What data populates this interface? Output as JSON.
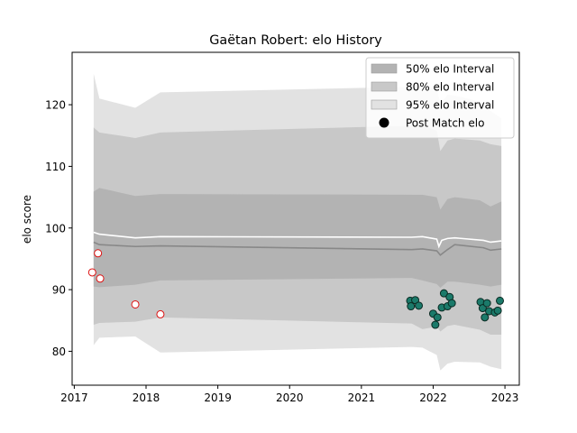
{
  "chart_data": {
    "type": "line",
    "title": "Gaëtan Robert: elo History",
    "xlabel": "",
    "ylabel": "elo score",
    "xlim": [
      2016.97,
      2023.2
    ],
    "ylim": [
      74.5,
      128.5
    ],
    "x_ticks": [
      "2017",
      "2018",
      "2019",
      "2020",
      "2021",
      "2022",
      "2023"
    ],
    "y_ticks": [
      "80",
      "90",
      "100",
      "110",
      "120"
    ],
    "grid": false,
    "legend_position": "top-right",
    "legend": [
      {
        "label": "50% elo Interval",
        "kind": "patch",
        "color": "#b3b3b3"
      },
      {
        "label": "80% elo Interval",
        "kind": "patch",
        "color": "#c8c8c8"
      },
      {
        "label": "95% elo Interval",
        "kind": "patch",
        "color": "#e2e2e2"
      },
      {
        "label": "Post Match elo",
        "kind": "marker",
        "color": "#000000"
      }
    ],
    "bands": {
      "x": [
        2017.27,
        2017.35,
        2017.85,
        2018.2,
        2021.7,
        2021.85,
        2022.05,
        2022.1,
        2022.2,
        2022.3,
        2022.65,
        2022.8,
        2022.95
      ],
      "p95_hi": [
        125.0,
        121.0,
        119.5,
        122.0,
        122.9,
        123.0,
        122.6,
        120.2,
        121.6,
        121.5,
        120.5,
        119.0,
        117.8
      ],
      "p80_hi": [
        116.3,
        115.5,
        114.6,
        115.5,
        116.6,
        116.6,
        115.8,
        112.5,
        114.2,
        114.5,
        114.2,
        113.6,
        113.3
      ],
      "p50_hi": [
        105.9,
        106.5,
        105.2,
        105.5,
        105.4,
        105.4,
        105.0,
        103.0,
        104.7,
        105.0,
        104.5,
        103.5,
        104.3
      ],
      "p50_lo": [
        90.5,
        90.4,
        90.8,
        91.5,
        91.9,
        91.5,
        90.9,
        90.3,
        91.3,
        91.3,
        90.8,
        90.5,
        90.8
      ],
      "p80_lo": [
        84.3,
        84.6,
        84.8,
        85.5,
        84.5,
        83.6,
        84.0,
        83.2,
        84.1,
        84.3,
        83.5,
        82.7,
        82.7
      ],
      "p95_lo": [
        81.0,
        82.2,
        82.4,
        79.8,
        80.7,
        80.6,
        79.4,
        76.9,
        78.0,
        78.3,
        78.2,
        77.5,
        77.1
      ]
    },
    "median_line": {
      "x": [
        2017.27,
        2017.35,
        2017.85,
        2018.2,
        2021.7,
        2021.85,
        2022.05,
        2022.1,
        2022.2,
        2022.3,
        2022.7,
        2022.8,
        2022.95
      ],
      "y": [
        97.7,
        97.3,
        97.0,
        97.1,
        96.5,
        96.6,
        96.3,
        95.6,
        96.5,
        97.3,
        96.8,
        96.4,
        96.6
      ]
    },
    "mean_line": {
      "x": [
        2017.27,
        2017.35,
        2017.85,
        2018.2,
        2021.7,
        2021.85,
        2022.05,
        2022.08,
        2022.12,
        2022.2,
        2022.3,
        2022.7,
        2022.8,
        2022.95
      ],
      "y": [
        99.3,
        99.0,
        98.4,
        98.6,
        98.5,
        98.6,
        98.2,
        97.0,
        98.0,
        98.3,
        98.4,
        98.0,
        97.7,
        97.9
      ]
    },
    "series": [
      {
        "marker": "open-red",
        "x": [
          2017.25,
          2017.33,
          2017.36,
          2017.85,
          2018.2
        ],
        "y": [
          92.8,
          95.9,
          91.8,
          87.6,
          86.0
        ]
      },
      {
        "marker": "filled-teal",
        "x": [
          2021.68,
          2021.69,
          2021.75,
          2021.8,
          2022.0,
          2022.03,
          2022.06,
          2022.12,
          2022.15,
          2022.2,
          2022.23,
          2022.26,
          2022.66,
          2022.69,
          2022.72,
          2022.75,
          2022.78,
          2022.86,
          2022.9,
          2022.93
        ],
        "y": [
          88.2,
          87.3,
          88.3,
          87.4,
          86.1,
          84.3,
          85.5,
          87.1,
          89.4,
          87.3,
          88.8,
          87.8,
          88.0,
          87.0,
          85.5,
          87.8,
          86.5,
          86.3,
          86.6,
          88.2
        ]
      }
    ]
  }
}
